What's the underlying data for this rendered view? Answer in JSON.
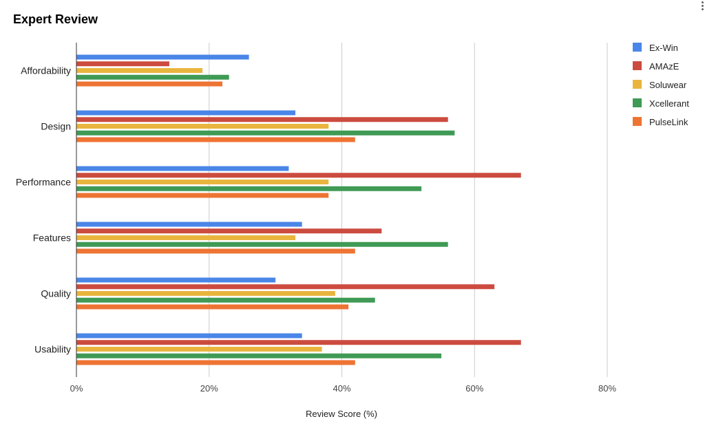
{
  "chart_data": {
    "type": "bar",
    "orientation": "horizontal",
    "title": "Expert Review",
    "xlabel": "Review Score (%)",
    "ylabel": "",
    "categories": [
      "Affordability",
      "Design",
      "Performance",
      "Features",
      "Quality",
      "Usability"
    ],
    "xlim": [
      0,
      80
    ],
    "xticks": [
      0,
      20,
      40,
      60,
      80
    ],
    "xtick_labels": [
      "0%",
      "20%",
      "40%",
      "60%",
      "80%"
    ],
    "grid": true,
    "legend_position": "right",
    "series": [
      {
        "name": "Ex-Win",
        "color": "#4a86e8",
        "values": [
          26,
          33,
          32,
          34,
          30,
          34
        ]
      },
      {
        "name": "AMAzE",
        "color": "#cc4b3f",
        "values": [
          14,
          56,
          67,
          46,
          63,
          67
        ]
      },
      {
        "name": "Soluwear",
        "color": "#e9b53e",
        "values": [
          19,
          38,
          38,
          33,
          39,
          37
        ]
      },
      {
        "name": "Xcellerant",
        "color": "#3f9a55",
        "values": [
          23,
          57,
          52,
          56,
          45,
          55
        ]
      },
      {
        "name": "PulseLink",
        "color": "#ee7434",
        "values": [
          22,
          42,
          38,
          42,
          41,
          42
        ]
      }
    ]
  }
}
